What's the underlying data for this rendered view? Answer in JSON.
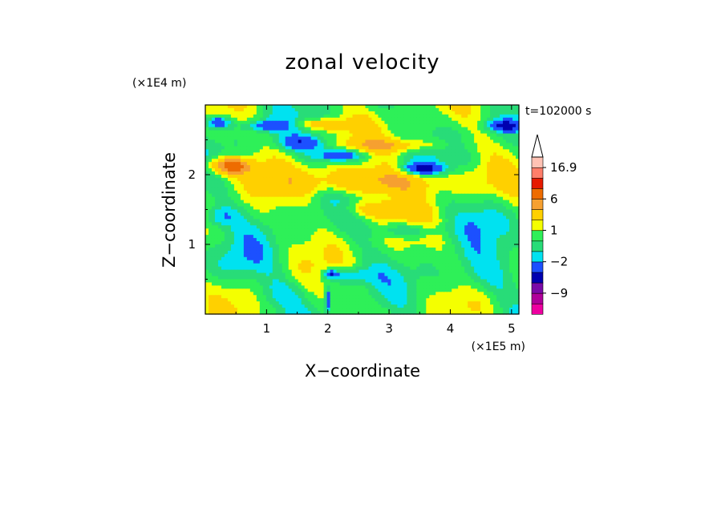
{
  "chart_data": {
    "type": "heatmap",
    "title": "zonal velocity",
    "xlabel": "X−coordinate",
    "ylabel": "Z−coordinate",
    "x_unit_label": "(×1E5 m)",
    "y_unit_label": "(×1E4 m)",
    "time_label": "t=102000 s",
    "xlim": [
      0,
      5.12
    ],
    "ylim": [
      0,
      3.0
    ],
    "x_ticks": [
      1,
      2,
      3,
      4,
      5
    ],
    "x_tick_labels": [
      "1",
      "2",
      "3",
      "4",
      "5"
    ],
    "y_ticks": [
      1,
      2
    ],
    "y_tick_labels": [
      "1",
      "2"
    ],
    "colorbar": {
      "levels": [
        -16,
        -12,
        -9,
        -6,
        -4,
        -2,
        -1,
        0,
        1,
        2,
        4,
        6,
        9,
        12,
        16.9
      ],
      "colors": [
        "#ee00a0",
        "#b0009a",
        "#7a0aa8",
        "#0000b0",
        "#1c50ff",
        "#00e2f0",
        "#28dc78",
        "#2ef058",
        "#f4ff00",
        "#ffd000",
        "#f6a030",
        "#ee6c00",
        "#e61a00",
        "#ff7e6a",
        "#ffc2b4"
      ],
      "tick_values": [
        16.9,
        6,
        1,
        -2,
        -9
      ],
      "tick_labels": [
        "16.9",
        "6",
        "1",
        "−2",
        "−9"
      ],
      "extend": "max"
    },
    "field_features": [
      {
        "x": 2.7,
        "z": 1.9,
        "amplitude": 4.0,
        "sx": 1.4,
        "sz": 0.2
      },
      {
        "x": 0.4,
        "z": 2.12,
        "amplitude": 7.0,
        "sx": 0.35,
        "sz": 0.12
      },
      {
        "x": 1.9,
        "z": 2.72,
        "amplitude": 3.0,
        "sx": 0.5,
        "sz": 0.08
      },
      {
        "x": 3.1,
        "z": 2.42,
        "amplitude": 3.0,
        "sx": 0.8,
        "sz": 0.1
      },
      {
        "x": 2.8,
        "z": 1.5,
        "amplitude": 3.0,
        "sx": 0.6,
        "sz": 0.12
      },
      {
        "x": 0.2,
        "z": 2.75,
        "amplitude": -4.5,
        "sx": 0.2,
        "sz": 0.08
      },
      {
        "x": 1.0,
        "z": 2.7,
        "amplitude": -3.5,
        "sx": 0.35,
        "sz": 0.08
      },
      {
        "x": 1.6,
        "z": 2.45,
        "amplitude": -3.5,
        "sx": 0.4,
        "sz": 0.1
      },
      {
        "x": 2.2,
        "z": 2.28,
        "amplitude": -4.5,
        "sx": 0.4,
        "sz": 0.1
      },
      {
        "x": 3.55,
        "z": 2.08,
        "amplitude": -5.0,
        "sx": 0.35,
        "sz": 0.08
      },
      {
        "x": 4.9,
        "z": 2.7,
        "amplitude": -4.5,
        "sx": 0.3,
        "sz": 0.08
      },
      {
        "x": 0.2,
        "z": 1.4,
        "amplitude": -2.5,
        "sx": 0.3,
        "sz": 0.15
      },
      {
        "x": 3.3,
        "z": 1.2,
        "amplitude": -2.5,
        "sx": 0.5,
        "sz": 0.1
      },
      {
        "x": 2.3,
        "z": 0.55,
        "amplitude": -3.0,
        "sx": 0.4,
        "sz": 0.12
      },
      {
        "x": 2.05,
        "z": 0.58,
        "amplitude": -4.5,
        "sx": 0.1,
        "sz": 0.05
      },
      {
        "x": 2.0,
        "z": 0.2,
        "amplitude": -5.0,
        "sx": 0.04,
        "sz": 0.15
      },
      {
        "x": 4.5,
        "z": 1.4,
        "amplitude": -1.5,
        "sx": 0.5,
        "sz": 0.3
      },
      {
        "x": 4.5,
        "z": 0.5,
        "amplitude": -1.5,
        "sx": 0.6,
        "sz": 0.3
      },
      {
        "x": 0.5,
        "z": 0.7,
        "amplitude": -1.5,
        "sx": 0.5,
        "sz": 0.3
      },
      {
        "x": 1.2,
        "z": 0.3,
        "amplitude": -1.5,
        "sx": 0.4,
        "sz": 0.2
      }
    ]
  }
}
